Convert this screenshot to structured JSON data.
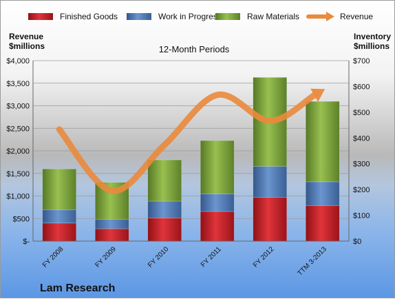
{
  "chart_data": {
    "type": "bar",
    "stacked": true,
    "title": "12-Month Periods",
    "company": "Lam Research",
    "categories": [
      "FY 2008",
      "FY 2009",
      "FY 2010",
      "FY 2011",
      "FY 2012",
      "TTM 3-2013"
    ],
    "series": [
      {
        "name": "Finished Goods",
        "axis": "right",
        "color": "#c8262d",
        "values": [
          70,
          48,
          90,
          115,
          170,
          138
        ]
      },
      {
        "name": "Work in Progress",
        "axis": "right",
        "color": "#4f7ab8",
        "values": [
          52,
          37,
          65,
          68,
          120,
          92
        ]
      },
      {
        "name": "Raw Materials",
        "axis": "right",
        "color": "#7fa43c",
        "values": [
          158,
          143,
          160,
          207,
          345,
          312
        ]
      },
      {
        "name": "Revenue",
        "axis": "left",
        "type": "line",
        "color": "#ea8a3c",
        "values": [
          2475,
          1115,
          2135,
          3240,
          2665,
          3340
        ]
      }
    ],
    "left_axis": {
      "label_line1": "Revenue",
      "label_line2": "$millions",
      "range": [
        0,
        4000
      ],
      "ticks": [
        "$-",
        "$500",
        "$1,000",
        "$1,500",
        "$2,000",
        "$2,500",
        "$3,000",
        "$3,500",
        "$4,000"
      ]
    },
    "right_axis": {
      "label_line1": "Inventory",
      "label_line2": "$millions",
      "range": [
        0,
        700
      ],
      "ticks": [
        "$0",
        "$100",
        "$200",
        "$300",
        "$400",
        "$500",
        "$600",
        "$700"
      ]
    },
    "legend_position": "top",
    "grid": true
  }
}
